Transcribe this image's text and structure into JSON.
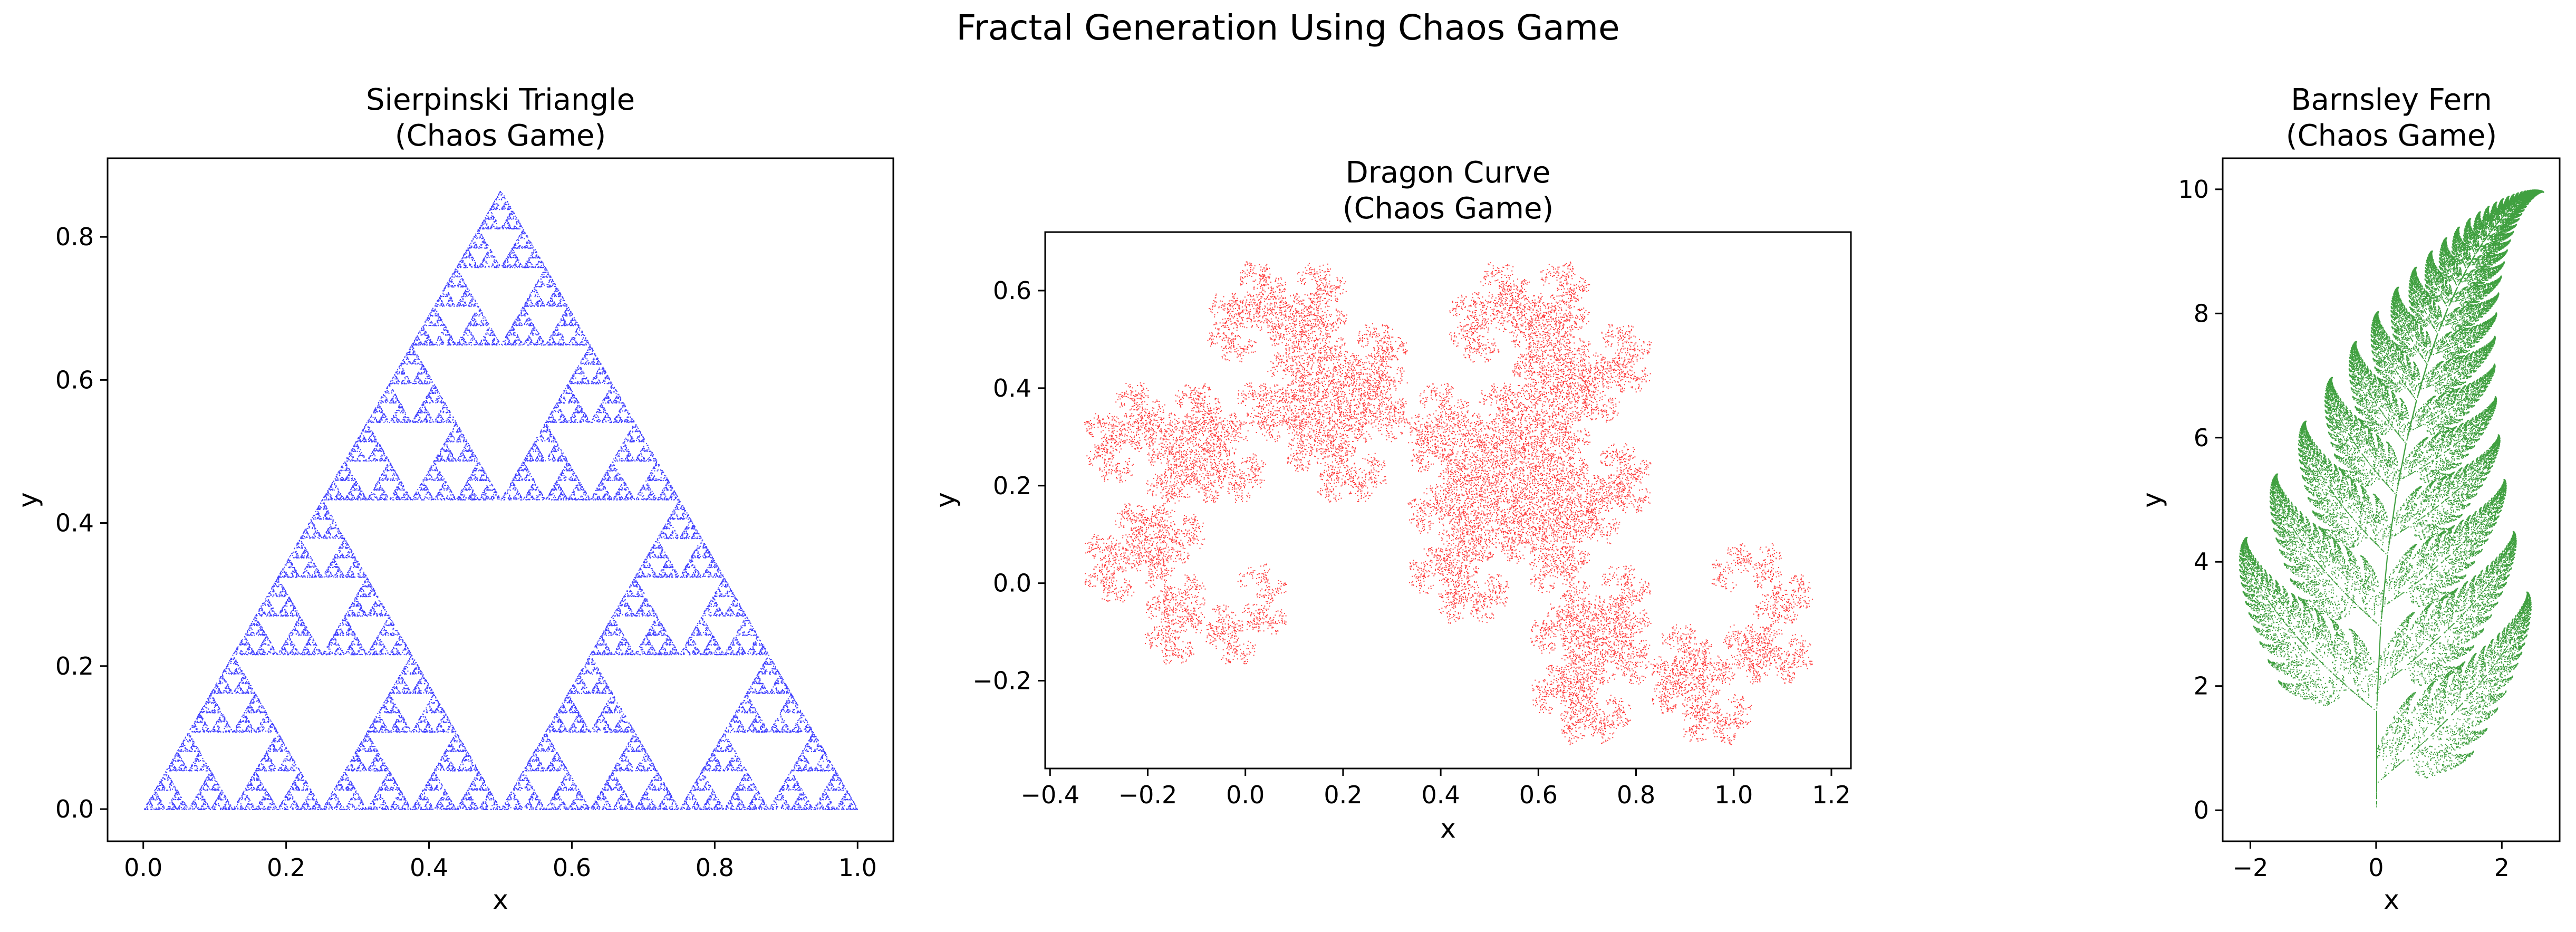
{
  "figure": {
    "suptitle": "Fractal Generation Using Chaos Game"
  },
  "chart_data": [
    {
      "type": "scatter",
      "fractal": "sierpinski",
      "title": [
        "Sierpinski Triangle",
        "(Chaos Game)"
      ],
      "xlabel": "x",
      "ylabel": "y",
      "xlim": [
        -0.05,
        1.05
      ],
      "ylim": [
        -0.045,
        0.91
      ],
      "xticks": [
        0.0,
        0.2,
        0.4,
        0.6,
        0.8,
        1.0
      ],
      "xtick_labels": [
        "0.0",
        "0.2",
        "0.4",
        "0.6",
        "0.8",
        "1.0"
      ],
      "yticks": [
        0.0,
        0.2,
        0.4,
        0.6,
        0.8
      ],
      "ytick_labels": [
        "0.0",
        "0.2",
        "0.4",
        "0.6",
        "0.8"
      ],
      "vertices": [
        [
          0,
          0
        ],
        [
          1,
          0
        ],
        [
          0.5,
          0.866
        ]
      ],
      "point_count": 30000,
      "color": "#0000ff",
      "grid": false
    },
    {
      "type": "scatter",
      "fractal": "dragon",
      "title": [
        "Dragon Curve",
        "(Chaos Game)"
      ],
      "xlabel": "x",
      "ylabel": "y",
      "xlim": [
        -0.41,
        1.24
      ],
      "ylim": [
        -0.38,
        0.72
      ],
      "xticks": [
        -0.4,
        -0.2,
        0.0,
        0.2,
        0.4,
        0.6,
        0.8,
        1.0,
        1.2
      ],
      "xtick_labels": [
        "−0.4",
        "−0.2",
        "0.0",
        "0.2",
        "0.4",
        "0.6",
        "0.8",
        "1.0",
        "1.2"
      ],
      "yticks": [
        -0.2,
        0.0,
        0.2,
        0.4,
        0.6
      ],
      "ytick_labels": [
        "−0.2",
        "0.0",
        "0.2",
        "0.4",
        "0.6"
      ],
      "data_extent": {
        "x": [
          -0.33,
          1.16
        ],
        "y": [
          -0.33,
          0.66
        ]
      },
      "point_count": 25000,
      "color": "#ff0000",
      "grid": false
    },
    {
      "type": "scatter",
      "fractal": "barnsley",
      "title": [
        "Barnsley Fern",
        "(Chaos Game)"
      ],
      "xlabel": "x",
      "ylabel": "y",
      "xlim": [
        -2.44,
        2.92
      ],
      "ylim": [
        -0.5,
        10.5
      ],
      "xticks": [
        -2,
        0,
        2
      ],
      "xtick_labels": [
        "−2",
        "0",
        "2"
      ],
      "yticks": [
        0,
        2,
        4,
        6,
        8,
        10
      ],
      "ytick_labels": [
        "0",
        "2",
        "4",
        "6",
        "8",
        "10"
      ],
      "point_count": 60000,
      "color": "#008000",
      "grid": false
    }
  ]
}
